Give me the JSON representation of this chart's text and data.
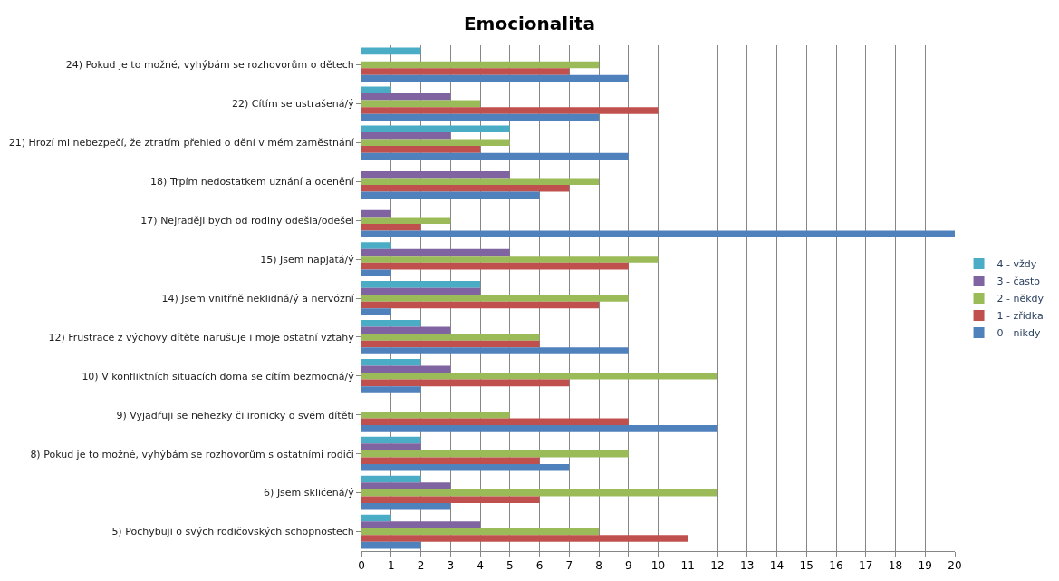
{
  "chart_data": {
    "type": "bar",
    "orientation": "horizontal",
    "title": "Emocionalita",
    "categories": [
      "24) Pokud je to možné, vyhýbám se rozhovorům o dětech",
      "22) Cítím se ustrašená/ý",
      "21) Hrozí mi nebezpečí, že ztratím přehled o dění v mém zaměstnání",
      "18) Trpím nedostatkem uznání a ocenění",
      "17) Nejraději bych od rodiny odešla/odešel",
      "15) Jsem napjatá/ý",
      "14) Jsem vnitřně neklidná/ý a nervózní",
      "12) Frustrace z výchovy dítěte narušuje i moje ostatní vztahy",
      "10) V konfliktních situacích doma se cítím bezmocná/ý",
      "9) Vyjadřuji se nehezky či ironicky o svém dítěti",
      "8) Pokud je to možné, vyhýbám se rozhovorům s ostatními rodiči",
      "6) Jsem skličená/ý",
      "5) Pochybuji o svých rodičovských schopnostech"
    ],
    "series": [
      {
        "name": "4 - vždy",
        "color": "#4bacc6",
        "values": [
          2,
          1,
          5,
          0,
          0,
          1,
          4,
          2,
          2,
          0,
          2,
          2,
          1
        ]
      },
      {
        "name": "3 - často",
        "color": "#8064a2",
        "values": [
          0,
          3,
          3,
          5,
          1,
          5,
          4,
          3,
          3,
          0,
          2,
          3,
          4
        ]
      },
      {
        "name": "2 - někdy",
        "color": "#9bbb59",
        "values": [
          8,
          4,
          5,
          8,
          3,
          10,
          9,
          6,
          12,
          5,
          9,
          12,
          8
        ]
      },
      {
        "name": "1 - zřídka",
        "color": "#c0504d",
        "values": [
          7,
          10,
          4,
          7,
          2,
          9,
          8,
          6,
          7,
          9,
          6,
          6,
          11
        ]
      },
      {
        "name": "0 - nikdy",
        "color": "#4f81bd",
        "values": [
          9,
          8,
          9,
          6,
          20,
          1,
          1,
          9,
          2,
          12,
          7,
          3,
          2
        ]
      }
    ],
    "xlim": [
      0,
      20
    ],
    "xticks": [
      0,
      1,
      2,
      3,
      4,
      5,
      6,
      7,
      8,
      9,
      10,
      11,
      12,
      13,
      14,
      15,
      16,
      17,
      18,
      19,
      20
    ],
    "grid": "x",
    "legend": "right"
  }
}
